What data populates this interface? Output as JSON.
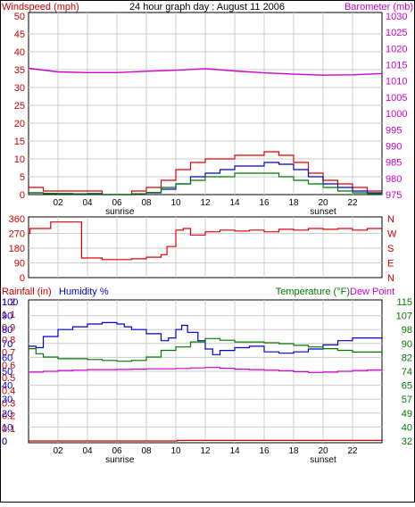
{
  "chart_data": [
    {
      "type": "line",
      "title": "24 hour graph day : August 11 2006",
      "left_axis_label": "Windspeed (mph)",
      "right_axis_label": "Barometer (mb)",
      "x_ticks": [
        "02",
        "04",
        "06",
        "08",
        "10",
        "12",
        "14",
        "16",
        "18",
        "20",
        "22"
      ],
      "x_annotations": [
        "sunrise",
        "sunset"
      ],
      "x_range_hours": [
        0,
        24
      ],
      "sunrise_hour": 6.2,
      "sunset_hour": 20.0,
      "left_ylim": [
        0,
        50
      ],
      "left_ticks": [
        "0",
        "5",
        "10",
        "15",
        "20",
        "25",
        "30",
        "35",
        "40",
        "45",
        "50"
      ],
      "right_ylim": [
        975,
        1030
      ],
      "right_ticks": [
        "975",
        "980",
        "985",
        "990",
        "995",
        "1000",
        "1005",
        "1010",
        "1015",
        "1020",
        "1025",
        "1030"
      ],
      "grid": true,
      "series": [
        {
          "color": "#dd0000",
          "axis": "left",
          "kind": "gust",
          "x": [
            0,
            1,
            2,
            3,
            4,
            5,
            6,
            7,
            8,
            9,
            10,
            11,
            12,
            13,
            14,
            15,
            16,
            17,
            18,
            19,
            20,
            21,
            22,
            23,
            24
          ],
          "values": [
            2,
            1,
            1,
            1,
            1,
            0,
            0,
            1,
            2,
            4,
            7,
            9,
            10,
            10,
            11,
            11,
            12,
            11,
            9,
            6,
            4,
            3,
            2,
            1,
            1
          ]
        },
        {
          "color": "#0000cc",
          "axis": "left",
          "kind": "average",
          "x": [
            0,
            1,
            2,
            3,
            4,
            5,
            6,
            7,
            8,
            9,
            10,
            11,
            12,
            13,
            14,
            15,
            16,
            17,
            18,
            19,
            20,
            21,
            22,
            23,
            24
          ],
          "values": [
            0.5,
            0.3,
            0.3,
            0.2,
            0.3,
            0,
            0,
            0.2,
            0.5,
            1.5,
            3,
            5,
            6,
            7,
            8,
            8,
            9,
            8.5,
            7,
            5,
            3,
            2,
            1,
            0.5,
            0.3
          ]
        },
        {
          "color": "#007700",
          "axis": "left",
          "kind": "wind",
          "x": [
            0,
            1,
            2,
            3,
            4,
            5,
            6,
            7,
            8,
            9,
            10,
            11,
            12,
            13,
            14,
            15,
            16,
            17,
            18,
            19,
            20,
            21,
            22,
            23,
            24
          ],
          "values": [
            0.5,
            0.3,
            0.2,
            0.2,
            0.2,
            0,
            0,
            0.2,
            0.6,
            2,
            3,
            4,
            5,
            5,
            6,
            6,
            6,
            5,
            4,
            3,
            2,
            1,
            0.5,
            0.3,
            0.2
          ]
        },
        {
          "color": "#cc00cc",
          "axis": "right",
          "x": [
            0,
            2,
            4,
            6,
            8,
            10,
            12,
            14,
            16,
            18,
            20,
            22,
            24
          ],
          "values": [
            1013.9,
            1012.8,
            1012.6,
            1012.6,
            1013.0,
            1013.3,
            1013.8,
            1013.1,
            1012.5,
            1012.1,
            1011.8,
            1011.9,
            1012.3
          ]
        }
      ]
    },
    {
      "type": "line",
      "left_ylim": [
        0,
        360
      ],
      "left_ticks": [
        "0",
        "90",
        "180",
        "270",
        "360"
      ],
      "right_ticks": [
        "N",
        "W",
        "S",
        "E",
        "N"
      ],
      "x_range_hours": [
        0,
        24
      ],
      "grid": true,
      "series": [
        {
          "color": "#dd0000",
          "x": [
            0,
            0.1,
            1.4,
            1.5,
            3.5,
            3.6,
            4,
            5,
            6,
            7,
            8,
            9,
            9.4,
            10,
            10.5,
            11,
            12,
            13,
            14,
            15,
            16,
            17,
            18,
            19,
            20,
            21,
            22,
            23,
            24
          ],
          "values": [
            270,
            300,
            300,
            340,
            340,
            120,
            120,
            110,
            110,
            115,
            125,
            140,
            190,
            290,
            300,
            260,
            280,
            290,
            285,
            290,
            280,
            295,
            290,
            300,
            295,
            300,
            290,
            300,
            295
          ]
        }
      ]
    },
    {
      "type": "line",
      "left_axis_labels": [
        "Rainfall (in)",
        "Humidity %"
      ],
      "right_axis_labels": [
        "Temperature (°F)",
        "Dew Point"
      ],
      "rain_ylim": [
        0,
        1.2
      ],
      "rain_ticks": [
        "0",
        "0.1",
        "0.2",
        "0.3",
        "0.4",
        "0.5",
        "0.6",
        "0.7",
        "0.8",
        "0.9",
        "1.1",
        "1.2"
      ],
      "humidity_ylim": [
        0,
        100
      ],
      "humidity_ticks": [
        "0",
        "10",
        "20",
        "30",
        "40",
        "50",
        "60",
        "70",
        "80",
        "90",
        "100"
      ],
      "temp_ylim": [
        32,
        115
      ],
      "temp_ticks": [
        "32",
        "40",
        "49",
        "57",
        "65",
        "74",
        "82",
        "90",
        "98",
        "107",
        "115"
      ],
      "x_ticks": [
        "02",
        "04",
        "06",
        "08",
        "10",
        "12",
        "14",
        "16",
        "18",
        "20",
        "22"
      ],
      "x_annotations": [
        "sunrise",
        "sunset"
      ],
      "x_range_hours": [
        0,
        24
      ],
      "grid": true,
      "series": [
        {
          "color": "#0000cc",
          "axis": "humidity",
          "x": [
            0,
            0.5,
            1,
            2,
            3,
            4,
            5,
            6,
            6.5,
            7,
            8,
            9,
            9.5,
            10,
            10.4,
            10.8,
            11.5,
            12,
            12.5,
            13,
            14,
            15,
            16,
            17,
            18,
            19,
            20,
            21,
            22,
            23,
            24
          ],
          "values": [
            68,
            67,
            75,
            80,
            82,
            84,
            85,
            84,
            82,
            80,
            77,
            72,
            74,
            80,
            83,
            78,
            72,
            66,
            62,
            65,
            67,
            68,
            64,
            63,
            64,
            66,
            69,
            72,
            74,
            74,
            73
          ]
        },
        {
          "color": "#007700",
          "axis": "temperature",
          "x": [
            0,
            0.5,
            1,
            2,
            3,
            4,
            5,
            6,
            7,
            8,
            9,
            10,
            11,
            12,
            13,
            14,
            15,
            16,
            17,
            18,
            19,
            20,
            21,
            22,
            23,
            24
          ],
          "values": [
            87,
            84,
            82,
            81,
            81,
            80.5,
            80,
            79.5,
            80,
            82,
            86,
            88,
            91,
            93,
            92,
            91,
            91,
            90.5,
            90,
            89,
            88,
            87,
            86,
            85,
            85,
            85
          ]
        },
        {
          "color": "#cc00cc",
          "axis": "temperature",
          "x": [
            0,
            1,
            2,
            3,
            4,
            5,
            6,
            7,
            8,
            9,
            10,
            11,
            12,
            13,
            14,
            15,
            16,
            17,
            18,
            19,
            20,
            21,
            22,
            23,
            24
          ],
          "values": [
            73,
            73.5,
            74,
            74.2,
            74.5,
            74.5,
            74.6,
            74.8,
            75,
            75,
            75.2,
            75.5,
            75.8,
            75.3,
            74.8,
            74.5,
            74.2,
            73.8,
            73.3,
            72.8,
            73,
            73.5,
            74,
            74.3,
            74
          ]
        },
        {
          "color": "#cc0000",
          "axis": "rain",
          "x": [
            0,
            10.1,
            24
          ],
          "values": [
            0.0,
            0.005,
            0.005
          ]
        }
      ]
    }
  ]
}
